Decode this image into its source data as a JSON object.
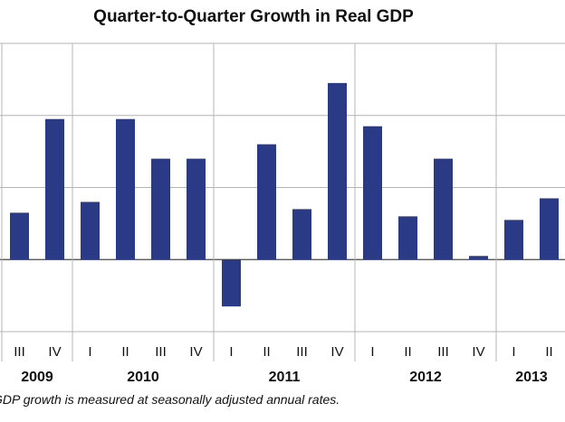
{
  "chart_data": {
    "type": "bar",
    "title": "Quarter-to-Quarter Growth in Real GDP",
    "categories": [
      "III",
      "IV",
      "I",
      "II",
      "III",
      "IV",
      "I",
      "II",
      "III",
      "IV",
      "I",
      "II",
      "III",
      "IV",
      "I",
      "II"
    ],
    "years": [
      {
        "label": "2009",
        "quarters": 2
      },
      {
        "label": "2010",
        "quarters": 4
      },
      {
        "label": "2011",
        "quarters": 4
      },
      {
        "label": "2012",
        "quarters": 4
      },
      {
        "label": "2013",
        "quarters": 2
      }
    ],
    "series": [
      {
        "values": [
          1.3,
          3.9,
          1.6,
          3.9,
          2.8,
          2.8,
          -1.3,
          3.2,
          1.4,
          4.9,
          3.7,
          1.2,
          2.8,
          0.1,
          1.1,
          1.7
        ]
      }
    ],
    "ylim": [
      -2,
      6
    ],
    "ytick_step": 2,
    "grid": true,
    "bar_color": "#2b3a87",
    "footnote": "GDP growth is measured at seasonally adjusted annual rates."
  }
}
